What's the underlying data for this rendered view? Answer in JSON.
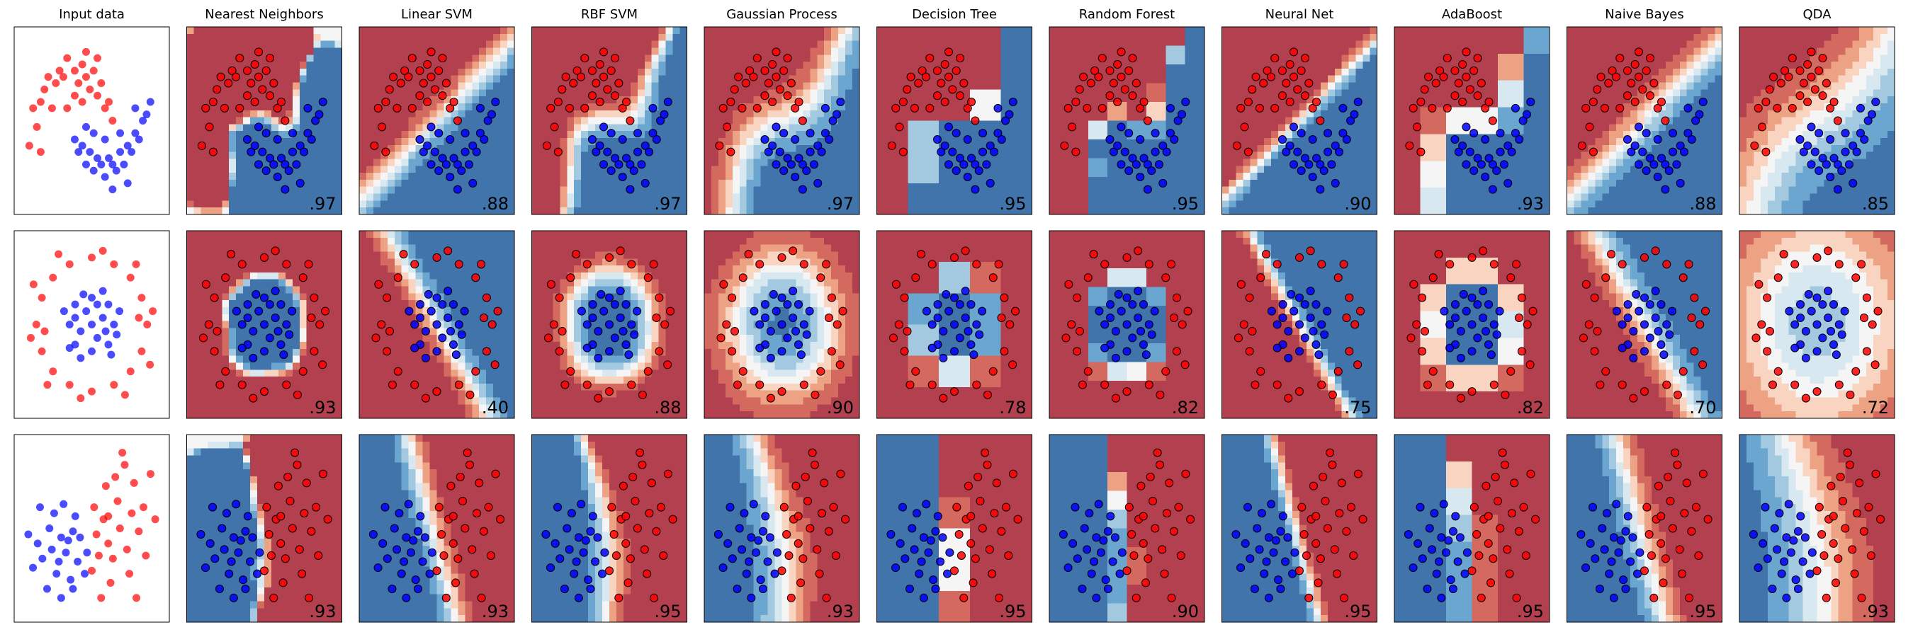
{
  "columns": [
    "Input data",
    "Nearest Neighbors",
    "Linear SVM",
    "RBF SVM",
    "Gaussian Process",
    "Decision Tree",
    "Random Forest",
    "Neural Net",
    "AdaBoost",
    "Naive Bayes",
    "QDA"
  ],
  "chart_data": [
    {
      "type": "scatter",
      "xlim": [
        -1.6,
        2.5
      ],
      "ylim": [
        -1.3,
        1.7
      ],
      "series": [
        {
          "color": "#ff0000",
          "x": [
            -1.0,
            -0.9,
            -0.8,
            -0.7,
            -0.5,
            -0.4,
            -0.3,
            -0.2,
            0.0,
            0.1,
            0.2,
            0.3,
            0.4,
            0.5,
            0.6,
            0.7,
            0.8,
            0.9,
            1.0,
            -1.1,
            -0.6,
            0.0,
            -0.2,
            0.3,
            -1.2,
            0.6,
            -0.9,
            0.2
          ],
          "y": [
            0.1,
            0.5,
            0.7,
            0.9,
            0.8,
            1.0,
            0.9,
            1.2,
            1.0,
            0.8,
            1.1,
            0.9,
            0.7,
            1.0,
            0.6,
            0.8,
            0.4,
            0.5,
            0.2,
            0.4,
            0.4,
            0.6,
            0.4,
            1.3,
            -0.2,
            1.2,
            -0.3,
            0.5
          ]
        },
        {
          "color": "#0000ff",
          "x": [
            0.0,
            0.1,
            0.2,
            0.3,
            0.4,
            0.5,
            0.6,
            0.7,
            0.8,
            0.9,
            1.0,
            1.1,
            1.2,
            1.3,
            1.4,
            1.5,
            1.6,
            1.7,
            1.8,
            1.9,
            2.0,
            0.3,
            0.8,
            1.2,
            1.6,
            1.0,
            0.5,
            1.4
          ],
          "y": [
            -0.1,
            -0.3,
            -0.2,
            -0.5,
            -0.3,
            -0.6,
            -0.4,
            -0.5,
            -0.7,
            -0.4,
            -0.5,
            -0.6,
            -0.3,
            -0.5,
            -0.2,
            -0.3,
            0.0,
            -0.1,
            0.2,
            0.3,
            0.5,
            0.1,
            -0.1,
            0.0,
            0.4,
            -0.9,
            0.0,
            -0.8
          ]
        }
      ],
      "values": [
        0.97,
        0.88,
        0.97,
        0.97,
        0.95,
        0.95,
        0.9,
        0.93,
        0.88,
        0.85
      ],
      "value_labels": [
        ".97",
        ".88",
        ".97",
        ".97",
        ".95",
        ".95",
        ".90",
        ".93",
        ".88",
        ".85"
      ]
    },
    {
      "type": "scatter",
      "xlim": [
        -1.4,
        1.4
      ],
      "ylim": [
        -1.4,
        1.4
      ],
      "series": [
        {
          "color": "#ff0000",
          "x": [
            1,
            0.9,
            0.7,
            0.4,
            0,
            -0.4,
            -0.7,
            -0.9,
            -1,
            -0.9,
            -0.7,
            -0.4,
            0,
            0.4,
            0.7,
            0.9,
            1.1,
            -1.1,
            0.2,
            -0.2,
            0.8,
            -0.8,
            1.05,
            -1.05,
            0.6,
            -0.6,
            0.85,
            -0.85
          ],
          "y": [
            0,
            0.4,
            0.7,
            0.9,
            1,
            0.9,
            0.7,
            0.4,
            0,
            -0.4,
            -0.7,
            -0.9,
            -1,
            -0.9,
            -0.7,
            -0.4,
            0.2,
            -0.2,
            1.1,
            -1.1,
            0.9,
            -0.9,
            -0.6,
            0.6,
            -1.05,
            1.05,
            0.1,
            -0.1
          ]
        },
        {
          "color": "#0000ff",
          "x": [
            0.4,
            0.3,
            0,
            -0.3,
            -0.4,
            -0.3,
            0,
            0.3,
            0.2,
            -0.1,
            -0.2,
            0.1,
            0.5,
            -0.5,
            0.2,
            -0.2,
            0.45,
            -0.15,
            0,
            0.35,
            -0.4,
            0.1,
            -0.3,
            0.25
          ],
          "y": [
            0,
            0.3,
            0.4,
            0.3,
            0,
            -0.3,
            -0.4,
            -0.3,
            0.1,
            0.2,
            -0.1,
            -0.2,
            0.2,
            0.2,
            0.5,
            -0.5,
            -0.15,
            0.45,
            0,
            -0.45,
            -0.35,
            0.3,
            0.1,
            -0.1
          ]
        }
      ],
      "values": [
        0.93,
        0.4,
        0.88,
        0.9,
        0.78,
        0.82,
        0.75,
        0.82,
        0.7,
        0.72
      ],
      "value_labels": [
        ".93",
        ".40",
        ".88",
        ".90",
        ".78",
        ".82",
        ".75",
        ".82",
        ".70",
        ".72"
      ]
    },
    {
      "type": "scatter",
      "xlim": [
        -3,
        3.6
      ],
      "ylim": [
        -2.6,
        3.6
      ],
      "series": [
        {
          "color": "#ff0000",
          "x": [
            1,
            1.5,
            2,
            1.2,
            0.8,
            1.8,
            2.3,
            0.6,
            1.4,
            2.1,
            1.7,
            0.9,
            2.5,
            0.5,
            1.1,
            1.9,
            2.6,
            1.3,
            0.7,
            2.2,
            0.4,
            1.6,
            3,
            0.3,
            2.8,
            1
          ],
          "y": [
            0,
            0.5,
            1,
            -0.5,
            0.8,
            -0.2,
            0.4,
            -0.4,
            1.4,
            2,
            2.6,
            1.9,
            1.2,
            0.3,
            -1.3,
            -1,
            -0.4,
            2.2,
            -1.8,
            -1.8,
            1.2,
            3,
            0.8,
            -0.9,
            2.3,
            0.9
          ]
        },
        {
          "color": "#0000ff",
          "x": [
            -2,
            -1.5,
            -1.8,
            -1.2,
            -1,
            -0.8,
            -0.5,
            -1.3,
            -0.6,
            -2.2,
            -1.6,
            -0.3,
            -0.9,
            -1.1,
            -0.4,
            -2.4,
            -0.7,
            -1.4,
            0,
            -0.2,
            0.1,
            -1.9,
            -1,
            -0.5
          ],
          "y": [
            0,
            0.5,
            -0.5,
            -1,
            0.2,
            -0.3,
            0.4,
            1,
            -1.2,
            -0.8,
            -1.5,
            -0.6,
            1.3,
            -0.6,
            0.9,
            0.3,
            0.1,
            -0.2,
            -1,
            0.2,
            -0.3,
            1.2,
            -1.8,
            -1.5
          ]
        }
      ],
      "values": [
        0.93,
        0.93,
        0.95,
        0.93,
        0.95,
        0.9,
        0.95,
        0.95,
        0.95,
        0.93
      ],
      "value_labels": [
        ".93",
        ".93",
        ".95",
        ".93",
        ".95",
        ".90",
        ".95",
        ".95",
        ".95",
        ".93"
      ]
    }
  ]
}
